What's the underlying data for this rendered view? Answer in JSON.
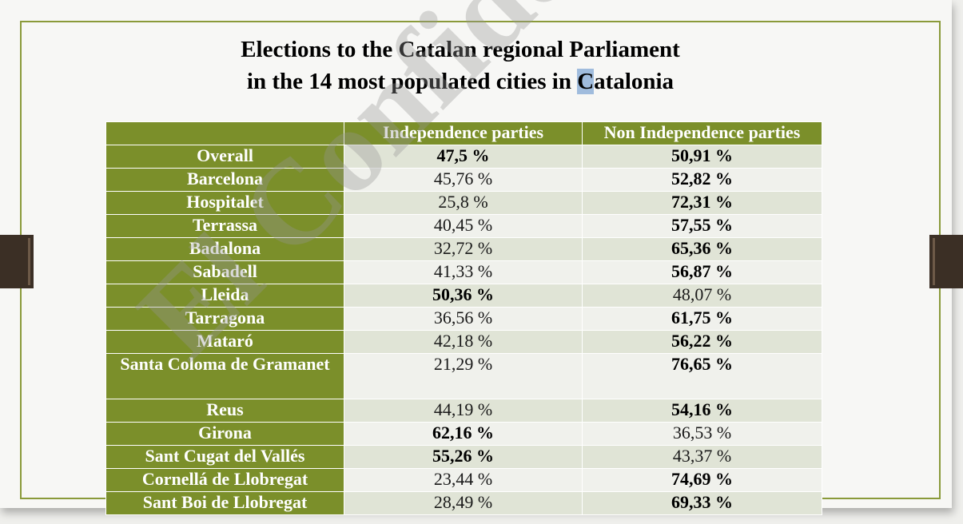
{
  "title": {
    "line1": "Elections to the Catalan regional Parliament",
    "line2_pre": "in the 14 most populated cities in ",
    "line2_hl": "C",
    "line2_post": "atalonia"
  },
  "watermark": "El Confidencial",
  "table": {
    "headers": [
      "",
      "Independence parties",
      "Non Independence parties"
    ],
    "rows": [
      {
        "city": "Overall",
        "ind": "47,5 %",
        "non": "50,91 %"
      },
      {
        "city": "Barcelona",
        "ind": "45,76 %",
        "non": "52,82 %"
      },
      {
        "city": "Hospitalet",
        "ind": "25,8 %",
        "non": "72,31 %"
      },
      {
        "city": "Terrassa",
        "ind": "40,45 %",
        "non": "57,55 %"
      },
      {
        "city": "Badalona",
        "ind": "32,72 %",
        "non": "65,36 %"
      },
      {
        "city": "Sabadell",
        "ind": "41,33 %",
        "non": "56,87 %"
      },
      {
        "city": "Lleida",
        "ind": "50,36 %",
        "non": "48,07 %"
      },
      {
        "city": "Tarragona",
        "ind": "36,56 %",
        "non": "61,75 %"
      },
      {
        "city": "Mataró",
        "ind": "42,18 %",
        "non": "56,22 %"
      },
      {
        "city": "Santa Coloma de Gramanet",
        "ind": "21,29 %",
        "non": "76,65 %"
      },
      {
        "city": "Reus",
        "ind": "44,19 %",
        "non": "54,16 %"
      },
      {
        "city": "Girona",
        "ind": "62,16 %",
        "non": "36,53 %"
      },
      {
        "city": "Sant Cugat del Vallés",
        "ind": "55,26 %",
        "non": "43,37 %"
      },
      {
        "city": "Cornellá de Llobregat",
        "ind": "23,44 %",
        "non": "74,69 %"
      },
      {
        "city": "Sant Boi de Llobregat",
        "ind": "28,49 %",
        "non": "69,33 %"
      }
    ]
  },
  "colors": {
    "header_green": "#7b8f2a",
    "row_dark": "#e0e4d6",
    "row_light": "#f0f1ec",
    "frame": "#8a9a3a"
  }
}
